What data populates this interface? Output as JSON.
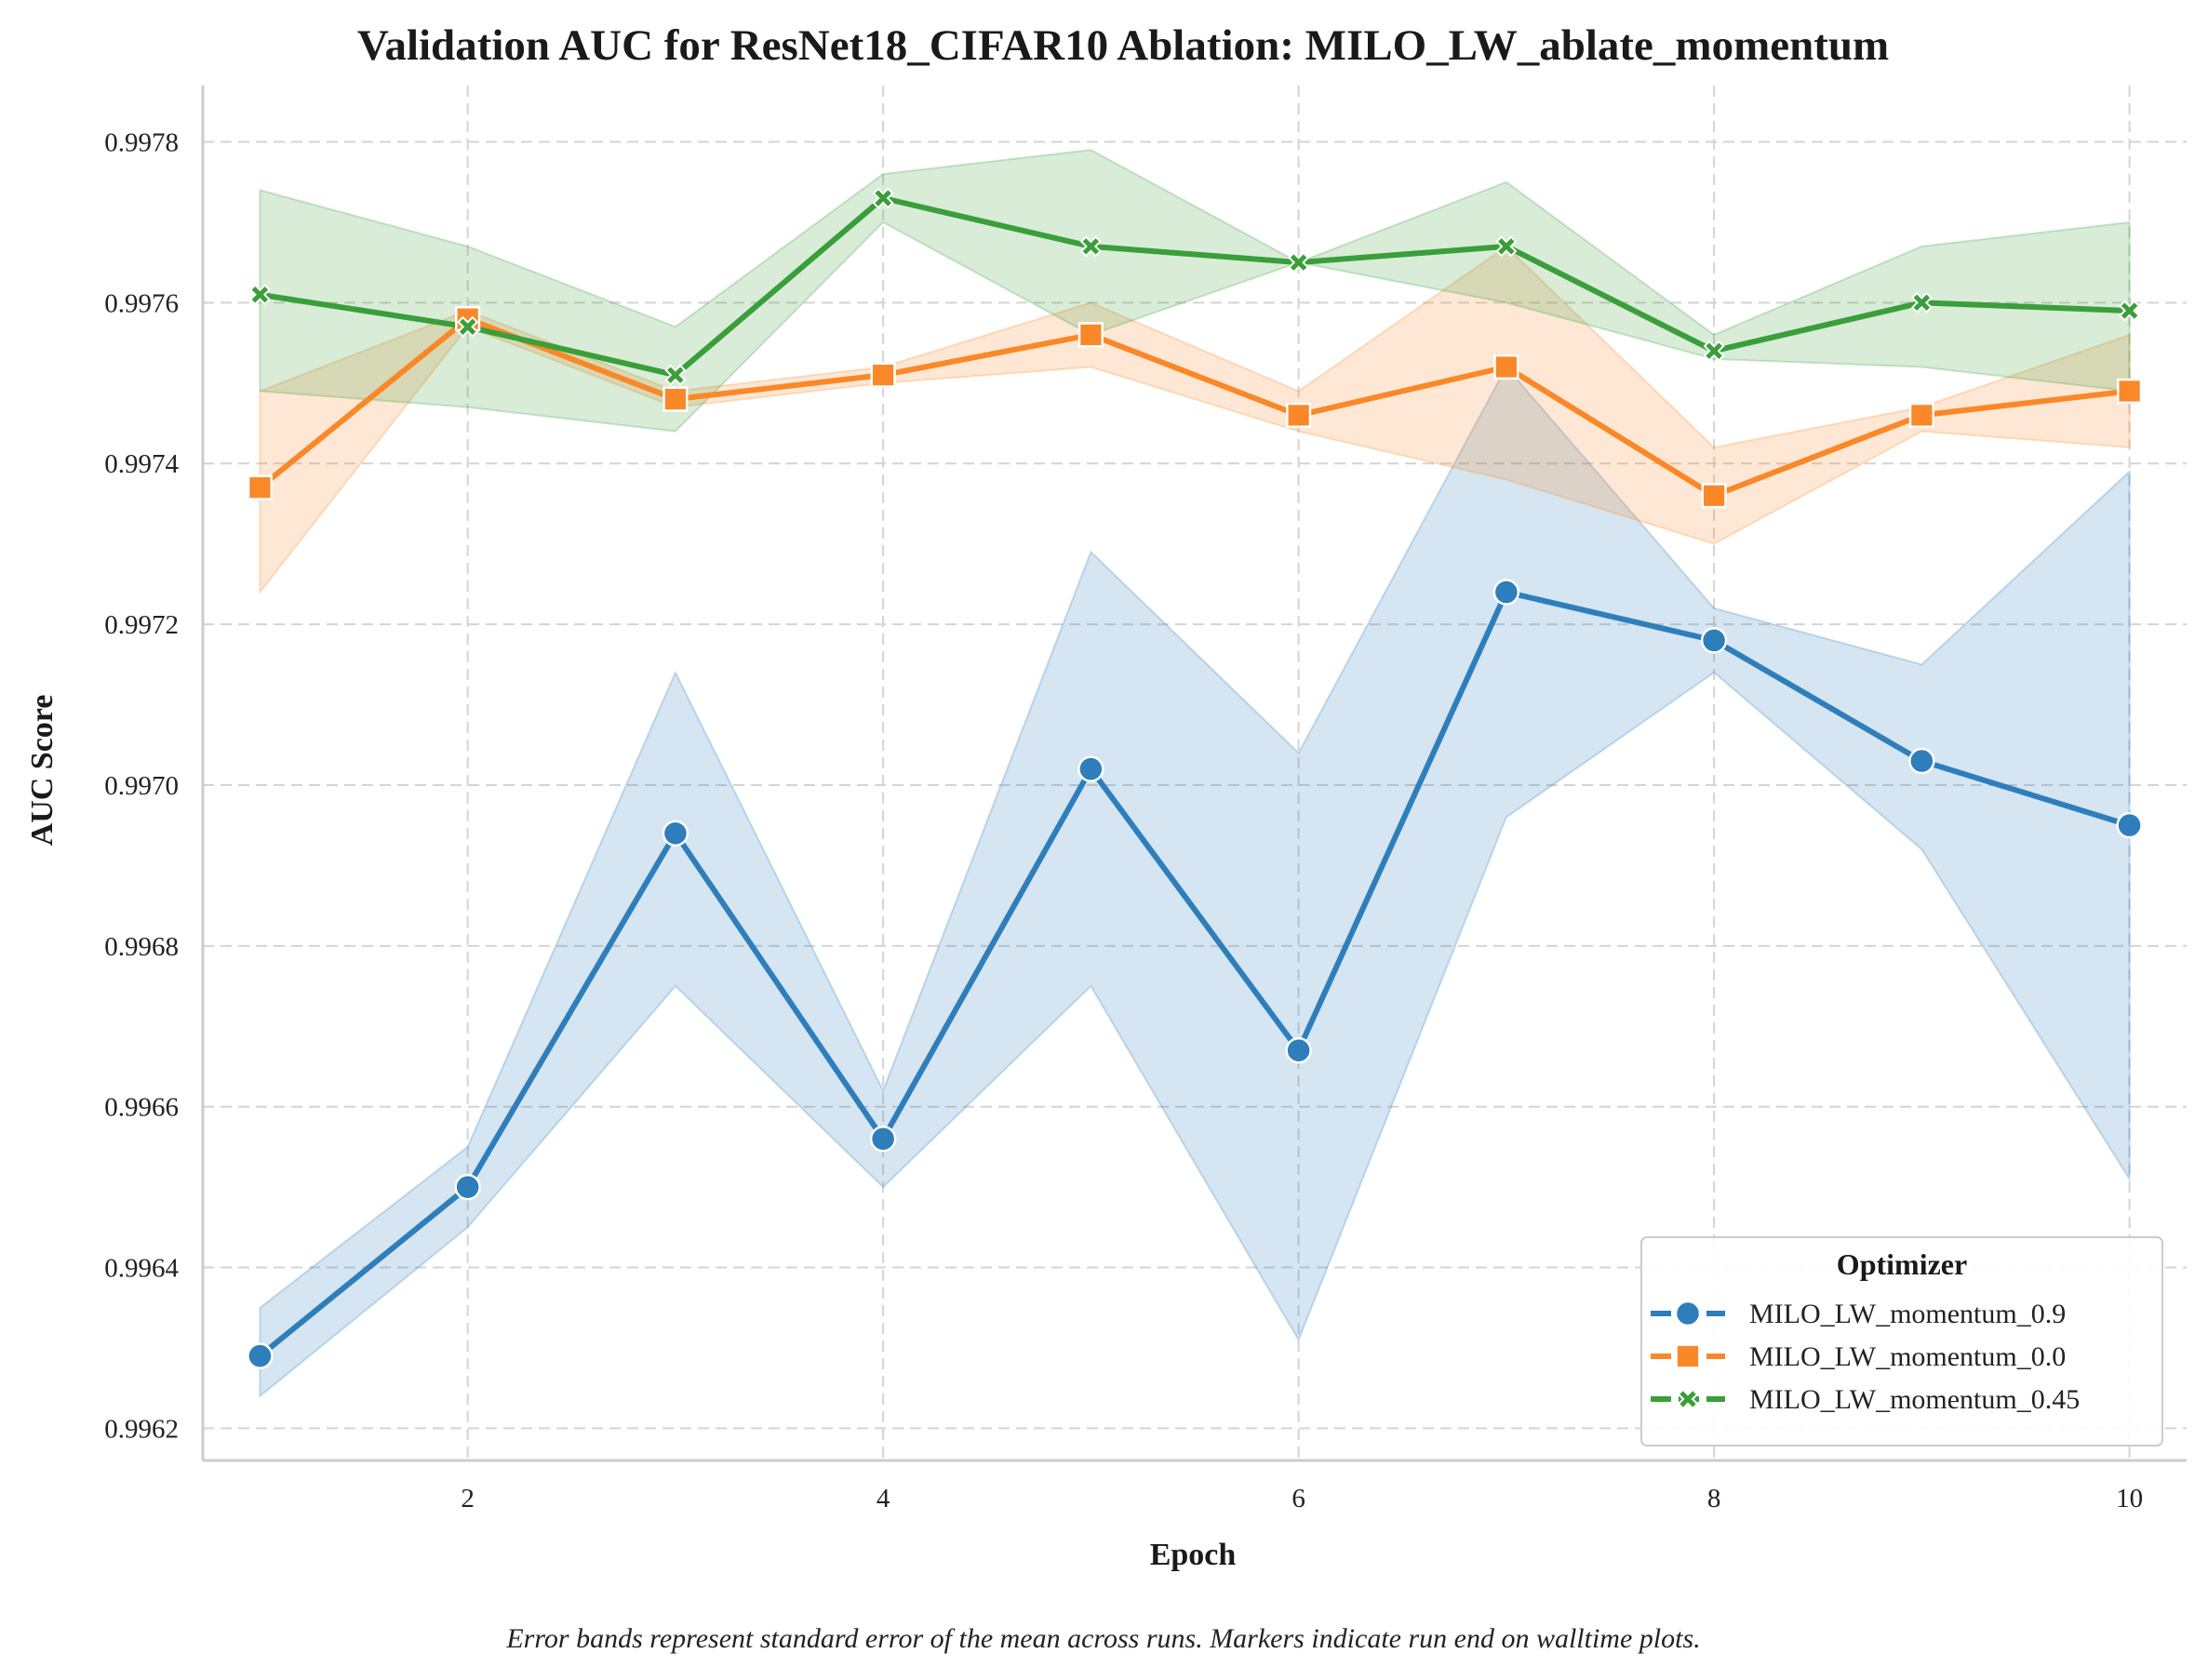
{
  "chart_data": {
    "type": "line",
    "title": "Validation AUC for ResNet18_CIFAR10 Ablation: MILO_LW_ablate_momentum",
    "xlabel": "Epoch",
    "ylabel": "AUC Score",
    "caption": "Error bands represent standard error of the mean across runs. Markers indicate run end on walltime plots.",
    "x": [
      1,
      2,
      3,
      4,
      5,
      6,
      7,
      8,
      9,
      10
    ],
    "xlim": [
      0.725,
      10.275
    ],
    "ylim": [
      0.99616,
      0.99787
    ],
    "xticks": [
      2,
      4,
      6,
      8,
      10
    ],
    "xtick_labels": [
      "2",
      "4",
      "6",
      "8",
      "10"
    ],
    "yticks": [
      0.9962,
      0.9964,
      0.9966,
      0.9968,
      0.997,
      0.9972,
      0.9974,
      0.9976,
      0.9978
    ],
    "ytick_labels": [
      "0.9962",
      "0.9964",
      "0.9966",
      "0.9968",
      "0.9970",
      "0.9972",
      "0.9974",
      "0.9976",
      "0.9978"
    ],
    "grid": true,
    "legend": {
      "title": "Optimizer",
      "placement": "lower-right"
    },
    "series": [
      {
        "name": "MILO_LW_momentum_0.9",
        "color": "#2e7ebb",
        "marker": "circle",
        "values": [
          0.99629,
          0.9965,
          0.99694,
          0.99656,
          0.99702,
          0.99667,
          0.99724,
          0.99718,
          0.99703,
          0.99695
        ],
        "lower": [
          0.99624,
          0.99645,
          0.99675,
          0.9965,
          0.99675,
          0.99631,
          0.99696,
          0.99714,
          0.99692,
          0.99651
        ],
        "upper": [
          0.99635,
          0.99655,
          0.99714,
          0.99662,
          0.99729,
          0.99704,
          0.99752,
          0.99722,
          0.99715,
          0.99739
        ]
      },
      {
        "name": "MILO_LW_momentum_0.0",
        "color": "#fa8828",
        "marker": "square",
        "values": [
          0.99737,
          0.99758,
          0.99748,
          0.99751,
          0.99756,
          0.99746,
          0.99752,
          0.99736,
          0.99746,
          0.99749
        ],
        "lower": [
          0.99724,
          0.99757,
          0.99747,
          0.9975,
          0.99752,
          0.99744,
          0.99738,
          0.9973,
          0.99744,
          0.99742
        ],
        "upper": [
          0.99749,
          0.99759,
          0.99749,
          0.99752,
          0.9976,
          0.99749,
          0.99767,
          0.99742,
          0.99747,
          0.99756
        ]
      },
      {
        "name": "MILO_LW_momentum_0.45",
        "color": "#3a9e3a",
        "marker": "x",
        "values": [
          0.99761,
          0.99757,
          0.99751,
          0.99773,
          0.99767,
          0.99765,
          0.99767,
          0.99754,
          0.9976,
          0.99759
        ],
        "lower": [
          0.99749,
          0.99747,
          0.99744,
          0.9977,
          0.99756,
          0.99765,
          0.9976,
          0.99753,
          0.99752,
          0.99749
        ],
        "upper": [
          0.99774,
          0.99767,
          0.99757,
          0.99776,
          0.99779,
          0.99765,
          0.99775,
          0.99756,
          0.99767,
          0.9977
        ]
      }
    ]
  }
}
